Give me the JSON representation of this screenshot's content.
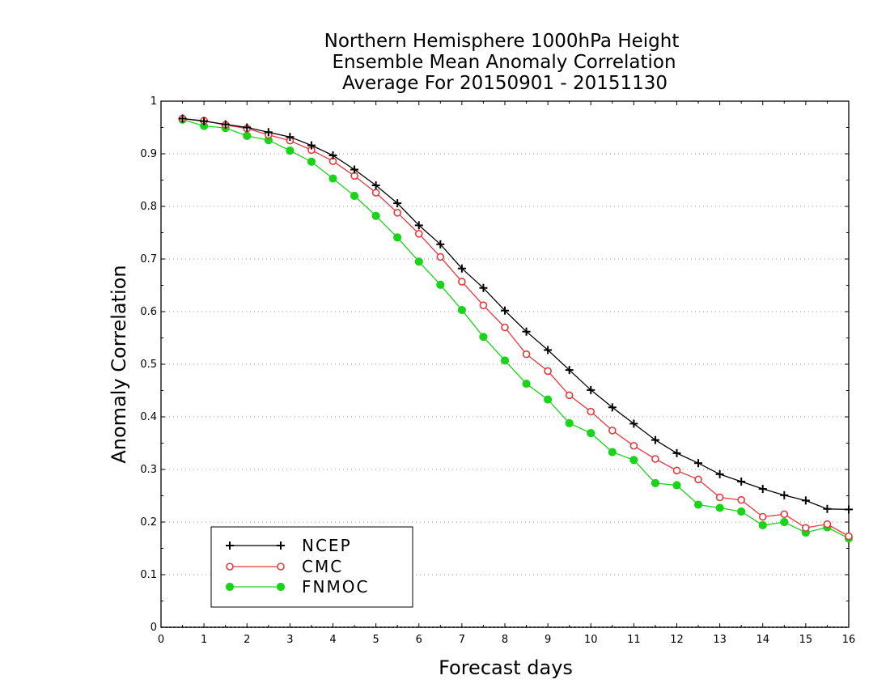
{
  "chart_data": {
    "type": "line",
    "title_lines": [
      "Northern Hemisphere 1000hPa Height",
      "Ensemble Mean Anomaly Correlation",
      "Average For 20150901 - 20151130"
    ],
    "xlabel": "Forecast days",
    "ylabel": "Anomaly Correlation",
    "xlim": [
      0,
      16
    ],
    "ylim": [
      0,
      1
    ],
    "x_ticks": [
      0,
      1,
      2,
      3,
      4,
      5,
      6,
      7,
      8,
      9,
      10,
      11,
      12,
      13,
      14,
      15,
      16
    ],
    "y_ticks": [
      0,
      0.1,
      0.2,
      0.3,
      0.4,
      0.5,
      0.6,
      0.7,
      0.8,
      0.9,
      1
    ],
    "grid": "horizontal dotted",
    "legend_position": "bottom-left",
    "x": [
      0.5,
      1,
      1.5,
      2,
      2.5,
      3,
      3.5,
      4,
      4.5,
      5,
      5.5,
      6,
      6.5,
      7,
      7.5,
      8,
      8.5,
      9,
      9.5,
      10,
      10.5,
      11,
      11.5,
      12,
      12.5,
      13,
      13.5,
      14,
      14.5,
      15,
      15.5,
      16
    ],
    "series": [
      {
        "name": "NCEP",
        "color": "#000000",
        "marker": "plus",
        "values": [
          0.967,
          0.962,
          0.956,
          0.95,
          0.941,
          0.932,
          0.916,
          0.897,
          0.87,
          0.84,
          0.806,
          0.764,
          0.728,
          0.682,
          0.645,
          0.602,
          0.562,
          0.527,
          0.489,
          0.451,
          0.418,
          0.387,
          0.356,
          0.331,
          0.312,
          0.291,
          0.277,
          0.263,
          0.251,
          0.241,
          0.225,
          0.224
        ]
      },
      {
        "name": "CMC",
        "color": "#e8383d",
        "marker": "open-circle",
        "values": [
          0.967,
          0.963,
          0.955,
          0.948,
          0.936,
          0.925,
          0.907,
          0.886,
          0.858,
          0.826,
          0.788,
          0.748,
          0.704,
          0.657,
          0.612,
          0.57,
          0.519,
          0.487,
          0.441,
          0.41,
          0.374,
          0.345,
          0.32,
          0.298,
          0.281,
          0.247,
          0.242,
          0.21,
          0.215,
          0.189,
          0.196,
          0.173
        ]
      },
      {
        "name": "FNMOC",
        "color": "#19d419",
        "marker": "filled-circle",
        "values": [
          0.965,
          0.953,
          0.949,
          0.934,
          0.926,
          0.906,
          0.885,
          0.853,
          0.82,
          0.782,
          0.741,
          0.695,
          0.651,
          0.603,
          0.552,
          0.507,
          0.463,
          0.433,
          0.388,
          0.369,
          0.333,
          0.318,
          0.274,
          0.27,
          0.233,
          0.227,
          0.22,
          0.194,
          0.2,
          0.18,
          0.19,
          0.169
        ]
      }
    ]
  }
}
